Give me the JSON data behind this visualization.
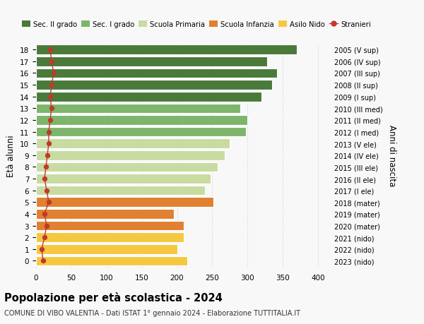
{
  "ages": [
    0,
    1,
    2,
    3,
    4,
    5,
    6,
    7,
    8,
    9,
    10,
    11,
    12,
    13,
    14,
    15,
    16,
    17,
    18
  ],
  "bar_values": [
    215,
    200,
    210,
    210,
    195,
    252,
    240,
    248,
    258,
    268,
    275,
    298,
    300,
    290,
    320,
    335,
    342,
    328,
    370
  ],
  "stranieri_values": [
    10,
    8,
    12,
    15,
    12,
    18,
    15,
    12,
    14,
    16,
    18,
    18,
    20,
    22,
    20,
    22,
    25,
    22,
    20
  ],
  "bar_colors": [
    "#f5c842",
    "#f5c842",
    "#f5c842",
    "#e08030",
    "#e08030",
    "#e08030",
    "#c8dba0",
    "#c8dba0",
    "#c8dba0",
    "#c8dba0",
    "#c8dba0",
    "#7db56a",
    "#7db56a",
    "#7db56a",
    "#4a7a3a",
    "#4a7a3a",
    "#4a7a3a",
    "#4a7a3a",
    "#4a7a3a"
  ],
  "right_labels": [
    "2023 (nido)",
    "2022 (nido)",
    "2021 (nido)",
    "2020 (mater)",
    "2019 (mater)",
    "2018 (mater)",
    "2017 (I ele)",
    "2016 (II ele)",
    "2015 (III ele)",
    "2014 (IV ele)",
    "2013 (V ele)",
    "2012 (I med)",
    "2011 (II med)",
    "2010 (III med)",
    "2009 (I sup)",
    "2008 (II sup)",
    "2007 (III sup)",
    "2006 (IV sup)",
    "2005 (V sup)"
  ],
  "legend_labels": [
    "Sec. II grado",
    "Sec. I grado",
    "Scuola Primaria",
    "Scuola Infanzia",
    "Asilo Nido",
    "Stranieri"
  ],
  "legend_colors": [
    "#4a7a3a",
    "#7db56a",
    "#c8dba0",
    "#e08030",
    "#f5c842",
    "#c0392b"
  ],
  "xlabel_vals": [
    0,
    50,
    100,
    150,
    200,
    250,
    300,
    350,
    400
  ],
  "xlim": [
    0,
    415
  ],
  "ylabel_left": "Età alunni",
  "ylabel_right": "Anni di nascita",
  "title": "Popolazione per età scolastica - 2024",
  "subtitle": "COMUNE DI VIBO VALENTIA - Dati ISTAT 1° gennaio 2024 - Elaborazione TUTTITALIA.IT",
  "stranieri_color": "#c0392b",
  "bar_height": 0.82,
  "bg_color": "#f8f8f8",
  "grid_color": "#dddddd"
}
